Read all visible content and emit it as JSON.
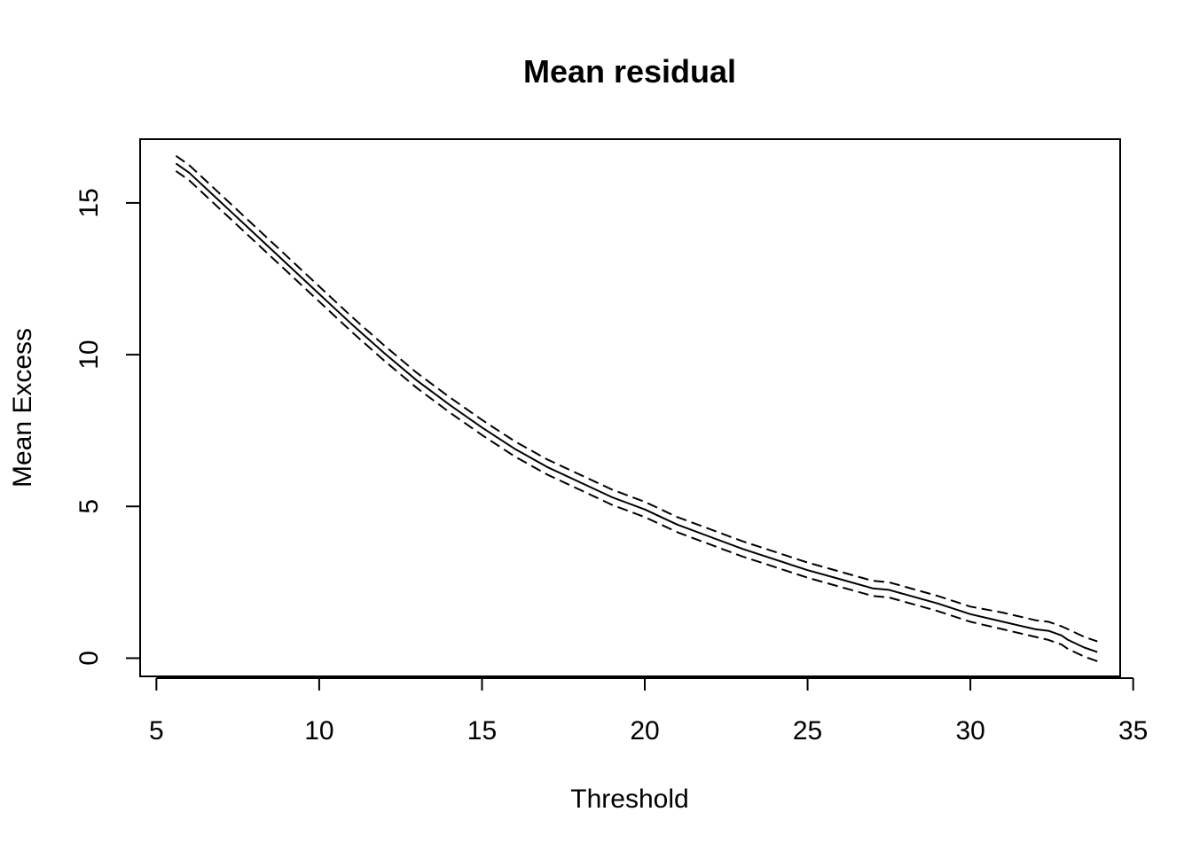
{
  "chart_data": {
    "type": "line",
    "title": "Mean residual",
    "xlabel": "Threshold",
    "ylabel": "Mean Excess",
    "xlim": [
      4.5,
      34.6
    ],
    "ylim": [
      -0.6,
      17.1
    ],
    "x_ticks": [
      5,
      10,
      15,
      20,
      25,
      30,
      35
    ],
    "x_tick_labels": [
      "5",
      "10",
      "15",
      "20",
      "25",
      "30",
      "35"
    ],
    "y_ticks": [
      0,
      5,
      10,
      15
    ],
    "y_tick_labels": [
      "0",
      "5",
      "10",
      "15"
    ],
    "grid": false,
    "legend": "none",
    "x": [
      5.6,
      6,
      7,
      8,
      9,
      10,
      11,
      12,
      13,
      14,
      15,
      16,
      17,
      18,
      19,
      20,
      21,
      22,
      23,
      24,
      25,
      26,
      27,
      27.5,
      28,
      29,
      30,
      31,
      32,
      32.4,
      32.8,
      33,
      33.5,
      33.9
    ],
    "series": [
      {
        "values": [
          16.3,
          16.0,
          15.0,
          14.0,
          13.0,
          12.0,
          11.0,
          10.05,
          9.15,
          8.35,
          7.6,
          6.9,
          6.3,
          5.8,
          5.3,
          4.9,
          4.4,
          4.0,
          3.6,
          3.25,
          2.9,
          2.6,
          2.3,
          2.25,
          2.1,
          1.8,
          1.45,
          1.2,
          0.95,
          0.9,
          0.75,
          0.6,
          0.35,
          0.2
        ],
        "style": "solid",
        "color": "#000000"
      },
      {
        "values": [
          16.55,
          16.25,
          15.25,
          14.25,
          13.25,
          12.25,
          11.25,
          10.3,
          9.4,
          8.6,
          7.85,
          7.15,
          6.55,
          6.05,
          5.55,
          5.15,
          4.65,
          4.25,
          3.85,
          3.5,
          3.15,
          2.85,
          2.55,
          2.5,
          2.35,
          2.05,
          1.7,
          1.5,
          1.25,
          1.2,
          1.05,
          0.95,
          0.7,
          0.55
        ],
        "style": "dashed",
        "color": "#000000"
      },
      {
        "values": [
          16.05,
          15.75,
          14.75,
          13.75,
          12.75,
          11.75,
          10.75,
          9.8,
          8.9,
          8.1,
          7.35,
          6.65,
          6.05,
          5.55,
          5.05,
          4.65,
          4.15,
          3.75,
          3.35,
          3.0,
          2.65,
          2.35,
          2.05,
          2.0,
          1.85,
          1.55,
          1.2,
          0.95,
          0.7,
          0.6,
          0.45,
          0.3,
          0.05,
          -0.1
        ],
        "style": "dashed",
        "color": "#000000"
      }
    ]
  }
}
